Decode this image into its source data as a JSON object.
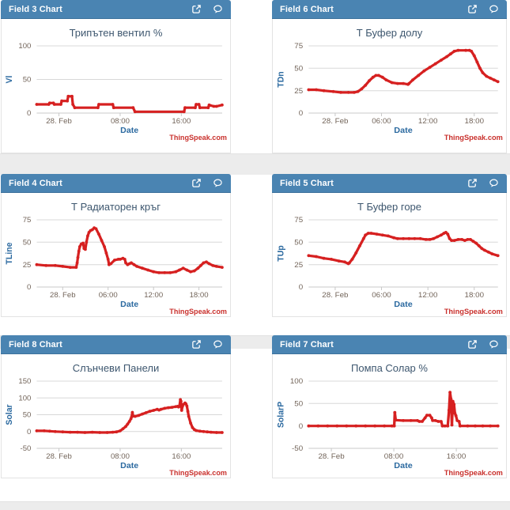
{
  "page": {
    "background": "#ffffff",
    "band_color": "#ececec"
  },
  "colors": {
    "header_bg": "#4a84b2",
    "line": "#d62020",
    "grid": "#d8d8d8",
    "axis_line": "#c9c9c9",
    "tick_label": "#73655a",
    "axis_title": "#2c6aa0",
    "chart_title": "#3e576f",
    "attribution": "#c9302c"
  },
  "panel_header_icons": [
    {
      "name": "external-link-icon"
    },
    {
      "name": "comment-icon"
    }
  ],
  "chart_data": [
    {
      "type": "line",
      "panel_title": "Field 3 Chart",
      "title": "Трипътен вентил %",
      "ylabel": "Vl",
      "xlabel": "Date",
      "attribution": "ThingSpeak.com",
      "yticks": [
        0,
        50,
        100
      ],
      "ylim": [
        0,
        100
      ],
      "xticks": [
        {
          "f": 0.12,
          "label": "28. Feb"
        },
        {
          "f": 0.45,
          "label": "08:00"
        },
        {
          "f": 0.78,
          "label": "16:00"
        }
      ],
      "points": [
        [
          0,
          13
        ],
        [
          0.065,
          13
        ],
        [
          0.07,
          15
        ],
        [
          0.09,
          15
        ],
        [
          0.095,
          13
        ],
        [
          0.13,
          13
        ],
        [
          0.135,
          18
        ],
        [
          0.165,
          18
        ],
        [
          0.17,
          25
        ],
        [
          0.19,
          25
        ],
        [
          0.195,
          13
        ],
        [
          0.205,
          8
        ],
        [
          0.33,
          8
        ],
        [
          0.335,
          13
        ],
        [
          0.41,
          13
        ],
        [
          0.415,
          8
        ],
        [
          0.52,
          8
        ],
        [
          0.53,
          2
        ],
        [
          0.795,
          2
        ],
        [
          0.8,
          8
        ],
        [
          0.855,
          8
        ],
        [
          0.86,
          13
        ],
        [
          0.875,
          13
        ],
        [
          0.88,
          8
        ],
        [
          0.925,
          8
        ],
        [
          0.93,
          12
        ],
        [
          0.955,
          10
        ],
        [
          0.97,
          10
        ],
        [
          1,
          12
        ]
      ]
    },
    {
      "type": "line",
      "panel_title": "Field 6 Chart",
      "title": "Т Буфер долу",
      "ylabel": "TDn",
      "xlabel": "Date",
      "attribution": "ThingSpeak.com",
      "yticks": [
        0,
        25,
        50,
        75
      ],
      "ylim": [
        0,
        75
      ],
      "xticks": [
        {
          "f": 0.14,
          "label": "28. Feb"
        },
        {
          "f": 0.385,
          "label": "06:00"
        },
        {
          "f": 0.63,
          "label": "12:00"
        },
        {
          "f": 0.875,
          "label": "18:00"
        }
      ],
      "points": [
        [
          0,
          26
        ],
        [
          0.04,
          26
        ],
        [
          0.08,
          25
        ],
        [
          0.13,
          24
        ],
        [
          0.17,
          23
        ],
        [
          0.21,
          23
        ],
        [
          0.24,
          23
        ],
        [
          0.26,
          24
        ],
        [
          0.28,
          27
        ],
        [
          0.3,
          31
        ],
        [
          0.32,
          36
        ],
        [
          0.34,
          40
        ],
        [
          0.355,
          42
        ],
        [
          0.37,
          42
        ],
        [
          0.39,
          40
        ],
        [
          0.41,
          37
        ],
        [
          0.44,
          34
        ],
        [
          0.47,
          33
        ],
        [
          0.5,
          33
        ],
        [
          0.525,
          32
        ],
        [
          0.53,
          33
        ],
        [
          0.55,
          37
        ],
        [
          0.58,
          42
        ],
        [
          0.61,
          47
        ],
        [
          0.64,
          51
        ],
        [
          0.67,
          55
        ],
        [
          0.7,
          59
        ],
        [
          0.73,
          63
        ],
        [
          0.75,
          66
        ],
        [
          0.77,
          69
        ],
        [
          0.79,
          70
        ],
        [
          0.83,
          70
        ],
        [
          0.85,
          70
        ],
        [
          0.86,
          69
        ],
        [
          0.875,
          64
        ],
        [
          0.89,
          57
        ],
        [
          0.905,
          50
        ],
        [
          0.92,
          45
        ],
        [
          0.94,
          41
        ],
        [
          0.96,
          39
        ],
        [
          0.98,
          37
        ],
        [
          1,
          35
        ]
      ]
    },
    {
      "type": "line",
      "panel_title": "Field 4 Chart",
      "title": "Т Радиаторен кръг",
      "ylabel": "TLine",
      "xlabel": "Date",
      "attribution": "ThingSpeak.com",
      "yticks": [
        0,
        25,
        50,
        75
      ],
      "ylim": [
        0,
        75
      ],
      "xticks": [
        {
          "f": 0.14,
          "label": "28. Feb"
        },
        {
          "f": 0.385,
          "label": "06:00"
        },
        {
          "f": 0.63,
          "label": "12:00"
        },
        {
          "f": 0.875,
          "label": "18:00"
        }
      ],
      "points": [
        [
          0,
          25
        ],
        [
          0.05,
          24
        ],
        [
          0.1,
          24
        ],
        [
          0.14,
          23
        ],
        [
          0.18,
          22
        ],
        [
          0.213,
          22
        ],
        [
          0.218,
          27
        ],
        [
          0.222,
          33
        ],
        [
          0.227,
          40
        ],
        [
          0.232,
          45
        ],
        [
          0.24,
          48
        ],
        [
          0.25,
          49
        ],
        [
          0.255,
          43
        ],
        [
          0.262,
          42
        ],
        [
          0.268,
          50
        ],
        [
          0.275,
          57
        ],
        [
          0.282,
          61
        ],
        [
          0.29,
          63
        ],
        [
          0.3,
          64
        ],
        [
          0.31,
          66
        ],
        [
          0.32,
          65
        ],
        [
          0.335,
          59
        ],
        [
          0.35,
          52
        ],
        [
          0.365,
          45
        ],
        [
          0.375,
          38
        ],
        [
          0.385,
          31
        ],
        [
          0.39,
          25
        ],
        [
          0.4,
          26
        ],
        [
          0.42,
          30
        ],
        [
          0.44,
          31
        ],
        [
          0.45,
          31
        ],
        [
          0.465,
          32
        ],
        [
          0.475,
          31
        ],
        [
          0.48,
          27
        ],
        [
          0.49,
          25
        ],
        [
          0.5,
          26
        ],
        [
          0.51,
          27
        ],
        [
          0.525,
          25
        ],
        [
          0.54,
          23
        ],
        [
          0.57,
          21
        ],
        [
          0.6,
          19
        ],
        [
          0.63,
          17
        ],
        [
          0.66,
          16
        ],
        [
          0.69,
          16
        ],
        [
          0.72,
          16
        ],
        [
          0.75,
          17
        ],
        [
          0.77,
          19
        ],
        [
          0.79,
          21
        ],
        [
          0.81,
          19
        ],
        [
          0.83,
          17
        ],
        [
          0.85,
          18
        ],
        [
          0.87,
          21
        ],
        [
          0.885,
          24
        ],
        [
          0.9,
          27
        ],
        [
          0.915,
          28
        ],
        [
          0.93,
          26
        ],
        [
          0.95,
          24
        ],
        [
          0.97,
          23
        ],
        [
          1,
          22
        ]
      ]
    },
    {
      "type": "line",
      "panel_title": "Field 5 Chart",
      "title": "Т Буфер горе",
      "ylabel": "TUp",
      "xlabel": "Date",
      "attribution": "ThingSpeak.com",
      "yticks": [
        0,
        25,
        50,
        75
      ],
      "ylim": [
        0,
        75
      ],
      "xticks": [
        {
          "f": 0.14,
          "label": "28. Feb"
        },
        {
          "f": 0.385,
          "label": "06:00"
        },
        {
          "f": 0.63,
          "label": "12:00"
        },
        {
          "f": 0.875,
          "label": "18:00"
        }
      ],
      "points": [
        [
          0,
          35
        ],
        [
          0.04,
          34
        ],
        [
          0.08,
          32
        ],
        [
          0.12,
          31
        ],
        [
          0.16,
          29
        ],
        [
          0.19,
          28
        ],
        [
          0.21,
          26
        ],
        [
          0.215,
          27
        ],
        [
          0.23,
          31
        ],
        [
          0.25,
          38
        ],
        [
          0.27,
          46
        ],
        [
          0.29,
          54
        ],
        [
          0.3,
          58
        ],
        [
          0.315,
          60
        ],
        [
          0.33,
          60
        ],
        [
          0.36,
          59
        ],
        [
          0.39,
          58
        ],
        [
          0.42,
          57
        ],
        [
          0.45,
          55
        ],
        [
          0.47,
          54
        ],
        [
          0.5,
          54
        ],
        [
          0.53,
          54
        ],
        [
          0.56,
          54
        ],
        [
          0.59,
          54
        ],
        [
          0.62,
          53
        ],
        [
          0.64,
          53
        ],
        [
          0.66,
          54
        ],
        [
          0.68,
          56
        ],
        [
          0.7,
          58
        ],
        [
          0.715,
          60
        ],
        [
          0.725,
          61
        ],
        [
          0.735,
          59
        ],
        [
          0.745,
          54
        ],
        [
          0.755,
          52
        ],
        [
          0.77,
          52
        ],
        [
          0.79,
          53
        ],
        [
          0.81,
          53
        ],
        [
          0.825,
          52
        ],
        [
          0.84,
          53
        ],
        [
          0.855,
          53
        ],
        [
          0.87,
          51
        ],
        [
          0.885,
          49
        ],
        [
          0.9,
          46
        ],
        [
          0.915,
          43
        ],
        [
          0.93,
          41
        ],
        [
          0.95,
          39
        ],
        [
          0.97,
          37
        ],
        [
          1,
          35
        ]
      ]
    },
    {
      "type": "line",
      "panel_title": "Field 8 Chart",
      "title": "Слънчеви Панели",
      "ylabel": "Solar",
      "xlabel": "Date",
      "attribution": "ThingSpeak.com",
      "yticks": [
        -50,
        0,
        50,
        100,
        150
      ],
      "ylim": [
        -50,
        150
      ],
      "xticks": [
        {
          "f": 0.12,
          "label": "28. Feb"
        },
        {
          "f": 0.45,
          "label": "08:00"
        },
        {
          "f": 0.78,
          "label": "16:00"
        }
      ],
      "points": [
        [
          0,
          2
        ],
        [
          0.04,
          2
        ],
        [
          0.07,
          1
        ],
        [
          0.1,
          0
        ],
        [
          0.14,
          -1
        ],
        [
          0.18,
          -2
        ],
        [
          0.22,
          -2
        ],
        [
          0.26,
          -3
        ],
        [
          0.3,
          -2
        ],
        [
          0.34,
          -3
        ],
        [
          0.38,
          -3
        ],
        [
          0.41,
          -2
        ],
        [
          0.43,
          -1
        ],
        [
          0.45,
          2
        ],
        [
          0.465,
          8
        ],
        [
          0.48,
          15
        ],
        [
          0.49,
          22
        ],
        [
          0.5,
          30
        ],
        [
          0.508,
          38
        ],
        [
          0.512,
          44
        ],
        [
          0.516,
          57
        ],
        [
          0.52,
          46
        ],
        [
          0.53,
          45
        ],
        [
          0.55,
          48
        ],
        [
          0.57,
          52
        ],
        [
          0.59,
          56
        ],
        [
          0.61,
          60
        ],
        [
          0.63,
          63
        ],
        [
          0.65,
          66
        ],
        [
          0.66,
          64
        ],
        [
          0.67,
          66
        ],
        [
          0.69,
          69
        ],
        [
          0.71,
          71
        ],
        [
          0.73,
          72
        ],
        [
          0.75,
          74
        ],
        [
          0.76,
          75
        ],
        [
          0.765,
          73
        ],
        [
          0.77,
          75
        ],
        [
          0.775,
          95
        ],
        [
          0.778,
          90
        ],
        [
          0.782,
          63
        ],
        [
          0.786,
          75
        ],
        [
          0.79,
          80
        ],
        [
          0.8,
          85
        ],
        [
          0.805,
          82
        ],
        [
          0.81,
          76
        ],
        [
          0.815,
          60
        ],
        [
          0.82,
          45
        ],
        [
          0.83,
          25
        ],
        [
          0.84,
          12
        ],
        [
          0.85,
          6
        ],
        [
          0.86,
          3
        ],
        [
          0.88,
          1
        ],
        [
          0.9,
          0
        ],
        [
          0.92,
          -1
        ],
        [
          0.94,
          -2
        ],
        [
          0.97,
          -3
        ],
        [
          1,
          -3
        ]
      ]
    },
    {
      "type": "line",
      "panel_title": "Field 7 Chart",
      "title": "Помпа Солар %",
      "ylabel": "SolarP",
      "xlabel": "Date",
      "attribution": "ThingSpeak.com",
      "yticks": [
        -50,
        0,
        50,
        100
      ],
      "ylim": [
        -50,
        100
      ],
      "xticks": [
        {
          "f": 0.12,
          "label": "28. Feb"
        },
        {
          "f": 0.45,
          "label": "08:00"
        },
        {
          "f": 0.78,
          "label": "16:00"
        }
      ],
      "points": [
        [
          0,
          0
        ],
        [
          0.05,
          0
        ],
        [
          0.1,
          0
        ],
        [
          0.15,
          0
        ],
        [
          0.2,
          0
        ],
        [
          0.25,
          0
        ],
        [
          0.3,
          0
        ],
        [
          0.35,
          0
        ],
        [
          0.4,
          0
        ],
        [
          0.44,
          0
        ],
        [
          0.452,
          0
        ],
        [
          0.455,
          30
        ],
        [
          0.46,
          13
        ],
        [
          0.5,
          12
        ],
        [
          0.54,
          12
        ],
        [
          0.575,
          12
        ],
        [
          0.585,
          10
        ],
        [
          0.6,
          10
        ],
        [
          0.615,
          18
        ],
        [
          0.625,
          24
        ],
        [
          0.64,
          24
        ],
        [
          0.65,
          18
        ],
        [
          0.655,
          12
        ],
        [
          0.67,
          12
        ],
        [
          0.685,
          10
        ],
        [
          0.7,
          10
        ],
        [
          0.707,
          0
        ],
        [
          0.72,
          0
        ],
        [
          0.735,
          0
        ],
        [
          0.742,
          35
        ],
        [
          0.747,
          75
        ],
        [
          0.752,
          60
        ],
        [
          0.757,
          2
        ],
        [
          0.762,
          55
        ],
        [
          0.768,
          48
        ],
        [
          0.773,
          28
        ],
        [
          0.778,
          23
        ],
        [
          0.785,
          12
        ],
        [
          0.795,
          10
        ],
        [
          0.8,
          0
        ],
        [
          0.84,
          0
        ],
        [
          0.88,
          0
        ],
        [
          0.92,
          0
        ],
        [
          0.96,
          0
        ],
        [
          1,
          0
        ]
      ]
    }
  ]
}
